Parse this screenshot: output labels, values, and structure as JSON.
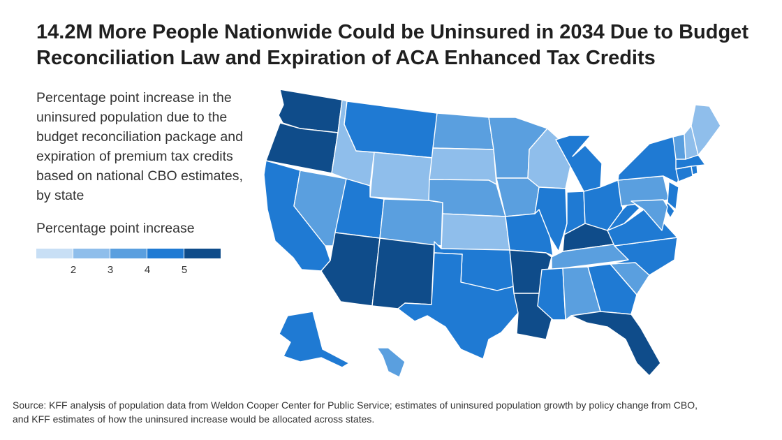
{
  "title": "14.2M More People Nationwide Could be Uninsured in 2034 Due to Budget Reconciliation Law and Expiration of ACA Enhanced Tax Credits",
  "subtitle": "Percentage point increase in the uninsured population due to the budget reconciliation package and expiration of premium tax credits based on national CBO estimates, by state",
  "legend": {
    "title": "Percentage point increase",
    "ticks": [
      "2",
      "3",
      "4",
      "5"
    ],
    "colors": [
      "#c8dff5",
      "#8fbeeb",
      "#5a9fdf",
      "#1f7ad3",
      "#0f4c8a"
    ]
  },
  "source": "Source: KFF analysis of population data from Weldon Cooper Center for Public Service; estimates of uninsured population growth by policy change from CBO, and KFF estimates of how the uninsured increase would be allocated across states.",
  "map_data": {
    "type": "choropleth",
    "bins": [
      "<2",
      "2-3",
      "3-4",
      "4-5",
      ">5"
    ],
    "states": [
      {
        "id": "WA",
        "bin": 4
      },
      {
        "id": "OR",
        "bin": 4
      },
      {
        "id": "CA",
        "bin": 3
      },
      {
        "id": "NV",
        "bin": 2
      },
      {
        "id": "ID",
        "bin": 1
      },
      {
        "id": "MT",
        "bin": 3
      },
      {
        "id": "WY",
        "bin": 1
      },
      {
        "id": "UT",
        "bin": 3
      },
      {
        "id": "AZ",
        "bin": 4
      },
      {
        "id": "NM",
        "bin": 4
      },
      {
        "id": "CO",
        "bin": 2
      },
      {
        "id": "ND",
        "bin": 2
      },
      {
        "id": "SD",
        "bin": 1
      },
      {
        "id": "NE",
        "bin": 2
      },
      {
        "id": "KS",
        "bin": 1
      },
      {
        "id": "OK",
        "bin": 3
      },
      {
        "id": "TX",
        "bin": 3
      },
      {
        "id": "MN",
        "bin": 2
      },
      {
        "id": "IA",
        "bin": 2
      },
      {
        "id": "MO",
        "bin": 3
      },
      {
        "id": "AR",
        "bin": 4
      },
      {
        "id": "LA",
        "bin": 4
      },
      {
        "id": "WI",
        "bin": 1
      },
      {
        "id": "IL",
        "bin": 3
      },
      {
        "id": "MI",
        "bin": 3
      },
      {
        "id": "IN",
        "bin": 3
      },
      {
        "id": "OH",
        "bin": 3
      },
      {
        "id": "KY",
        "bin": 4
      },
      {
        "id": "TN",
        "bin": 2
      },
      {
        "id": "MS",
        "bin": 3
      },
      {
        "id": "AL",
        "bin": 2
      },
      {
        "id": "GA",
        "bin": 3
      },
      {
        "id": "FL",
        "bin": 4
      },
      {
        "id": "SC",
        "bin": 2
      },
      {
        "id": "NC",
        "bin": 3
      },
      {
        "id": "VA",
        "bin": 3
      },
      {
        "id": "WV",
        "bin": 3
      },
      {
        "id": "PA",
        "bin": 2
      },
      {
        "id": "NY",
        "bin": 3
      },
      {
        "id": "NJ",
        "bin": 3
      },
      {
        "id": "DE",
        "bin": 3
      },
      {
        "id": "MD",
        "bin": 2
      },
      {
        "id": "CT",
        "bin": 3
      },
      {
        "id": "RI",
        "bin": 3
      },
      {
        "id": "MA",
        "bin": 3
      },
      {
        "id": "VT",
        "bin": 2
      },
      {
        "id": "NH",
        "bin": 1
      },
      {
        "id": "ME",
        "bin": 1
      },
      {
        "id": "AK",
        "bin": 3
      },
      {
        "id": "HI",
        "bin": 2
      }
    ]
  }
}
